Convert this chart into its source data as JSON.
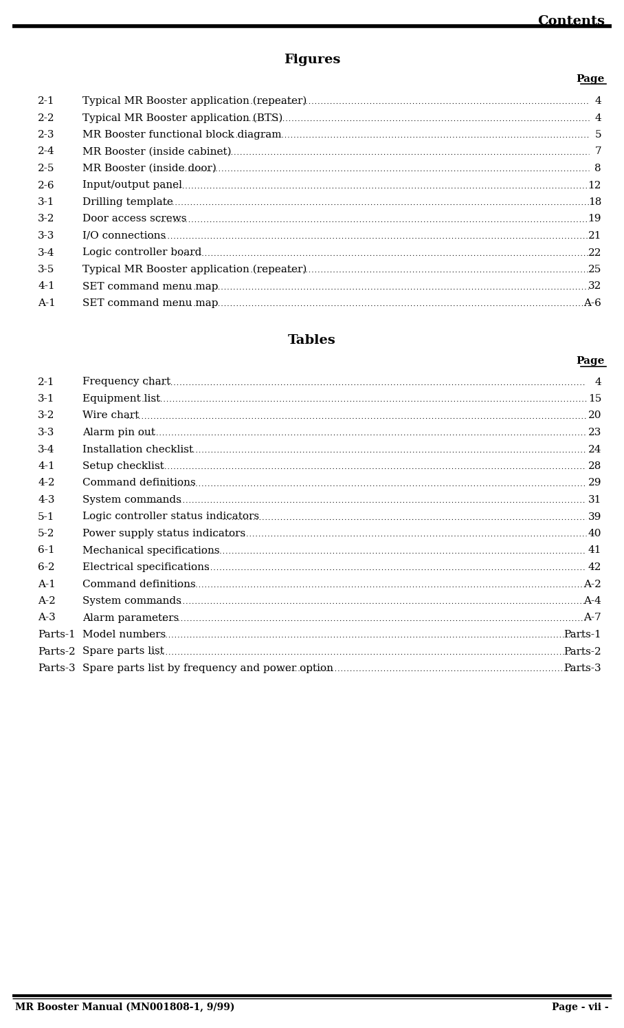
{
  "title": "Contents",
  "figures_heading": "Figures",
  "tables_heading": "Tables",
  "page_label": "Page",
  "figures_entries": [
    [
      "2-1",
      "Typical MR Booster application (repeater)",
      "4"
    ],
    [
      "2-2",
      "Typical MR Booster application (BTS)",
      "4"
    ],
    [
      "2-3",
      "MR Booster functional block diagram",
      "5"
    ],
    [
      "2-4",
      "MR Booster (inside cabinet)",
      "7"
    ],
    [
      "2-5",
      "MR Booster (inside door)",
      "8"
    ],
    [
      "2-6",
      "Input/output panel",
      "12"
    ],
    [
      "3-1",
      "Drilling template",
      "18"
    ],
    [
      "3-2",
      "Door access screws",
      "19"
    ],
    [
      "3-3",
      "I/O connections",
      "21"
    ],
    [
      "3-4",
      "Logic controller board",
      "22"
    ],
    [
      "3-5",
      "Typical MR Booster application (repeater)",
      "25"
    ],
    [
      "4-1",
      "SET command menu map",
      "32"
    ],
    [
      "A-1",
      "SET command menu map",
      "A-6"
    ]
  ],
  "tables_entries": [
    [
      "2-1",
      "Frequency chart",
      "4"
    ],
    [
      "3-1",
      "Equipment list",
      "15"
    ],
    [
      "3-2",
      "Wire chart",
      "20"
    ],
    [
      "3-3",
      "Alarm pin out",
      "23"
    ],
    [
      "3-4",
      "Installation checklist",
      "24"
    ],
    [
      "4-1",
      "Setup checklist",
      "28"
    ],
    [
      "4-2",
      "Command definitions",
      "29"
    ],
    [
      "4-3",
      "System commands",
      "31"
    ],
    [
      "5-1",
      "Logic controller status indicators",
      "39"
    ],
    [
      "5-2",
      "Power supply status indicators",
      "40"
    ],
    [
      "6-1",
      "Mechanical specifications",
      "41"
    ],
    [
      "6-2",
      "Electrical specifications",
      "42"
    ],
    [
      "A-1",
      "Command definitions",
      "A-2"
    ],
    [
      "A-2",
      "System commands",
      "A-4"
    ],
    [
      "A-3",
      "Alarm parameters",
      "A-7"
    ],
    [
      "Parts-1",
      "Model numbers",
      "Parts-1"
    ],
    [
      "Parts-2",
      "Spare parts list",
      "Parts-2"
    ],
    [
      "Parts-3",
      "Spare parts list by frequency and power option",
      "Parts-3"
    ]
  ],
  "footer_left": "MR Booster Manual (MN001808-1, 9/99)",
  "footer_right": "Page - vii -",
  "bg_color": "#ffffff",
  "text_color": "#000000"
}
